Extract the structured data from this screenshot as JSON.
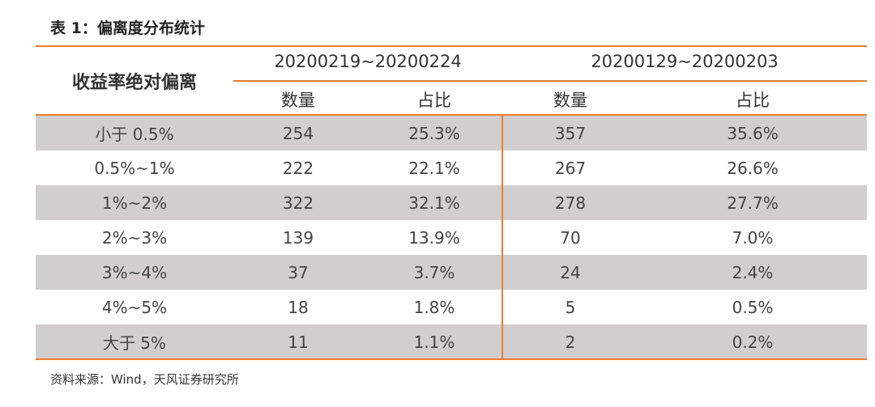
{
  "title": "表 1：偏离度分布统计",
  "table": {
    "row_header": "收益率绝对偏离",
    "periods": [
      "20200219~20200224",
      "20200129~20200203"
    ],
    "subheaders": [
      "数量",
      "占比",
      "数量",
      "占比"
    ],
    "rows": [
      {
        "label": "小于 0.5%",
        "count1": "254",
        "pct1": "25.3%",
        "count2": "357",
        "pct2": "35.6%"
      },
      {
        "label": "0.5%~1%",
        "count1": "222",
        "pct1": "22.1%",
        "count2": "267",
        "pct2": "26.6%"
      },
      {
        "label": "1%~2%",
        "count1": "322",
        "pct1": "32.1%",
        "count2": "278",
        "pct2": "27.7%"
      },
      {
        "label": "2%~3%",
        "count1": "139",
        "pct1": "13.9%",
        "count2": "70",
        "pct2": "7.0%"
      },
      {
        "label": "3%~4%",
        "count1": "37",
        "pct1": "3.7%",
        "count2": "24",
        "pct2": "2.4%"
      },
      {
        "label": "4%~5%",
        "count1": "18",
        "pct1": "1.8%",
        "count2": "5",
        "pct2": "0.5%"
      },
      {
        "label": "大于 5%",
        "count1": "11",
        "pct1": "1.1%",
        "count2": "2",
        "pct2": "0.2%"
      }
    ]
  },
  "source": "资料来源：Wind，天风证券研究所",
  "colors": {
    "accent": "#ed7d31",
    "shade": "#d0cece"
  }
}
